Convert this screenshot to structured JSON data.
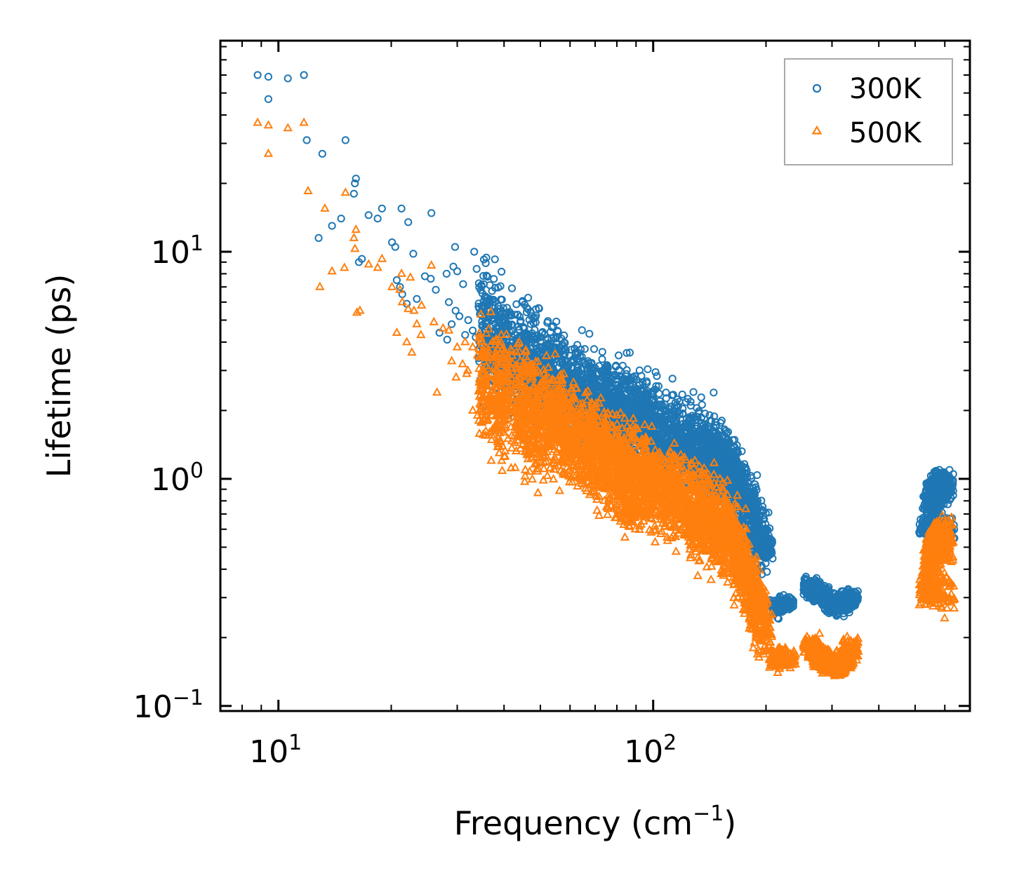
{
  "chart_data": {
    "type": "scatter",
    "xscale": "log",
    "yscale": "log",
    "xlim": [
      7,
      700
    ],
    "ylim": [
      0.095,
      85
    ],
    "xlabel": {
      "text": "Frequency (cm",
      "sup": "−1",
      "suffix": ")"
    },
    "ylabel": "Lifetime (ps)",
    "xticks": [
      {
        "value": 10,
        "base": "10",
        "exp": "1"
      },
      {
        "value": 100,
        "base": "10",
        "exp": "2"
      }
    ],
    "yticks": [
      {
        "value": 0.1,
        "base": "10",
        "exp": "−1"
      },
      {
        "value": 1,
        "base": "10",
        "exp": "0"
      },
      {
        "value": 10,
        "base": "10",
        "exp": "1"
      }
    ],
    "legend": {
      "placement": "top-right"
    },
    "series": [
      {
        "name": "300K",
        "marker": "circle",
        "color": "#1f77b4",
        "points": [
          [
            8.8,
            60
          ],
          [
            9.4,
            59
          ],
          [
            10.6,
            58
          ],
          [
            11.7,
            60
          ],
          [
            9.4,
            47
          ],
          [
            11.9,
            31
          ],
          [
            13.1,
            27
          ],
          [
            15.1,
            31
          ],
          [
            16.1,
            21
          ],
          [
            16.0,
            20
          ],
          [
            15.9,
            18
          ],
          [
            13.9,
            13
          ],
          [
            12.8,
            11.5
          ],
          [
            14.7,
            14
          ],
          [
            17.4,
            14.5
          ],
          [
            18.4,
            14
          ],
          [
            18.9,
            15.5
          ],
          [
            21.3,
            15.5
          ],
          [
            25.6,
            14.8
          ],
          [
            22.2,
            13.5
          ],
          [
            20.1,
            11
          ],
          [
            20.5,
            10.5
          ],
          [
            22.9,
            9.8
          ],
          [
            16.7,
            9.3
          ],
          [
            16.4,
            9
          ],
          [
            29.6,
            10.5
          ],
          [
            33.3,
            10
          ],
          [
            20.7,
            7.5
          ],
          [
            21.1,
            7
          ],
          [
            24.6,
            7.8
          ],
          [
            25.5,
            7.6
          ],
          [
            28.1,
            8
          ],
          [
            29.3,
            8.6
          ],
          [
            30.0,
            8.2
          ],
          [
            31.1,
            7.2
          ],
          [
            33.8,
            8.4
          ],
          [
            21.4,
            6.5
          ],
          [
            23.4,
            6.2
          ],
          [
            26.3,
            6.8
          ],
          [
            22.0,
            5.9
          ],
          [
            28.5,
            6
          ],
          [
            29.7,
            5.5
          ],
          [
            30.4,
            5.2
          ],
          [
            32.1,
            5
          ],
          [
            35.4,
            5.8
          ],
          [
            36.5,
            6
          ],
          [
            38.9,
            5.6
          ],
          [
            44.7,
            6
          ],
          [
            29.0,
            4.8
          ],
          [
            33.0,
            4.5
          ],
          [
            31.5,
            4.3
          ],
          [
            33.6,
            4.2
          ],
          [
            26.9,
            4.4
          ],
          [
            28.2,
            4.1
          ],
          [
            35.0,
            3.6
          ],
          [
            34.2,
            3.4
          ],
          [
            44.2,
            4.9
          ],
          [
            48.0,
            4.1
          ],
          [
            54.0,
            3.8
          ],
          [
            58.5,
            3.7
          ],
          [
            62.0,
            3.6
          ],
          [
            67.0,
            3.3
          ],
          [
            75.0,
            2.6
          ],
          [
            88.0,
            2.6
          ],
          [
            95.0,
            2.3
          ],
          [
            100.0,
            2.2
          ],
          [
            145.0,
            2.4
          ],
          [
            185.0,
            0.8
          ],
          [
            190.0,
            0.8
          ],
          [
            200.0,
            0.55
          ],
          [
            205.0,
            0.5
          ],
          [
            198.0,
            0.45
          ],
          [
            195.0,
            0.38
          ]
        ],
        "bands": [
          [
            36,
            4.4,
            0.45,
            140
          ],
          [
            40,
            3.8,
            0.4,
            170
          ],
          [
            45,
            3.3,
            0.38,
            180
          ],
          [
            50,
            2.95,
            0.36,
            180
          ],
          [
            55,
            2.7,
            0.34,
            180
          ],
          [
            60,
            2.5,
            0.33,
            180
          ],
          [
            66,
            2.3,
            0.32,
            180
          ],
          [
            72,
            2.15,
            0.3,
            180
          ],
          [
            78,
            2.05,
            0.3,
            180
          ],
          [
            85,
            1.95,
            0.3,
            180
          ],
          [
            92,
            1.85,
            0.3,
            180
          ],
          [
            100,
            1.7,
            0.28,
            180
          ],
          [
            110,
            1.55,
            0.28,
            180
          ],
          [
            120,
            1.45,
            0.27,
            180
          ],
          [
            130,
            1.35,
            0.27,
            180
          ],
          [
            140,
            1.3,
            0.25,
            170
          ],
          [
            150,
            1.2,
            0.25,
            160
          ],
          [
            160,
            1.1,
            0.22,
            150
          ],
          [
            170,
            0.95,
            0.22,
            140
          ],
          [
            180,
            0.75,
            0.2,
            130
          ],
          [
            190,
            0.6,
            0.18,
            110
          ],
          [
            198,
            0.5,
            0.16,
            90
          ],
          [
            215,
            0.27,
            0.06,
            60
          ],
          [
            225,
            0.285,
            0.05,
            60
          ],
          [
            265,
            0.33,
            0.07,
            110
          ],
          [
            280,
            0.31,
            0.07,
            110
          ],
          [
            295,
            0.29,
            0.06,
            110
          ],
          [
            310,
            0.275,
            0.06,
            110
          ],
          [
            325,
            0.28,
            0.05,
            100
          ],
          [
            335,
            0.3,
            0.06,
            90
          ],
          [
            540,
            0.6,
            0.08,
            60
          ],
          [
            550,
            0.75,
            0.1,
            80
          ],
          [
            560,
            0.86,
            0.08,
            90
          ],
          [
            570,
            0.9,
            0.08,
            90
          ],
          [
            580,
            0.92,
            0.09,
            90
          ],
          [
            590,
            0.95,
            0.1,
            90
          ],
          [
            600,
            0.9,
            0.1,
            90
          ],
          [
            605,
            0.6,
            0.12,
            60
          ]
        ]
      },
      {
        "name": "500K",
        "marker": "triangle",
        "color": "#ff7f0e",
        "points": [
          [
            8.8,
            37
          ],
          [
            9.4,
            36
          ],
          [
            10.6,
            35
          ],
          [
            11.7,
            37
          ],
          [
            9.4,
            27
          ],
          [
            12.0,
            18.5
          ],
          [
            13.3,
            15.5
          ],
          [
            15.1,
            18.2
          ],
          [
            16.1,
            12.5
          ],
          [
            15.9,
            11.5
          ],
          [
            16.0,
            10.3
          ],
          [
            15.0,
            8.5
          ],
          [
            13.9,
            8.2
          ],
          [
            12.9,
            7
          ],
          [
            17.4,
            8.8
          ],
          [
            18.4,
            8.5
          ],
          [
            18.9,
            9.3
          ],
          [
            21.3,
            8
          ],
          [
            22.5,
            7.7
          ],
          [
            25.6,
            8.7
          ],
          [
            20.1,
            7
          ],
          [
            21.1,
            6.8
          ],
          [
            21.4,
            6
          ],
          [
            22.2,
            5.6
          ],
          [
            16.2,
            5.4
          ],
          [
            16.5,
            5.5
          ],
          [
            23.0,
            5.5
          ],
          [
            24.1,
            5.8
          ],
          [
            26.0,
            4.9
          ],
          [
            20.7,
            4.4
          ],
          [
            23.4,
            4.8
          ],
          [
            24.0,
            4.3
          ],
          [
            27.5,
            4.6
          ],
          [
            22.0,
            4.0
          ],
          [
            22.7,
            3.6
          ],
          [
            28.5,
            4.5
          ],
          [
            30.0,
            3.8
          ],
          [
            31.5,
            4.0
          ],
          [
            33.0,
            3.8
          ],
          [
            35.0,
            3.6
          ],
          [
            29.0,
            3.3
          ],
          [
            31.0,
            3.2
          ],
          [
            32.0,
            3.0
          ],
          [
            34.0,
            3.5
          ],
          [
            36.0,
            3.4
          ],
          [
            29.8,
            2.8
          ],
          [
            31.8,
            2.9
          ],
          [
            26.5,
            2.4
          ],
          [
            34.5,
            2.5
          ],
          [
            35.5,
            2.2
          ],
          [
            37.0,
            2.0
          ],
          [
            34.0,
            1.9
          ],
          [
            33.0,
            2.0
          ],
          [
            36.0,
            1.8
          ],
          [
            38.0,
            1.7
          ],
          [
            40.0,
            1.6
          ],
          [
            41.0,
            1.5
          ],
          [
            88.0,
            1.5
          ],
          [
            96.0,
            1.5
          ],
          [
            120.0,
            0.9
          ],
          [
            150.0,
            0.5
          ],
          [
            155.0,
            0.42
          ],
          [
            158.0,
            0.35
          ],
          [
            185.0,
            0.18
          ],
          [
            208.0,
            0.15
          ],
          [
            215.0,
            0.14
          ]
        ],
        "bands": [
          [
            36,
            2.55,
            0.45,
            130
          ],
          [
            40,
            2.3,
            0.42,
            170
          ],
          [
            45,
            2.05,
            0.4,
            180
          ],
          [
            50,
            1.9,
            0.38,
            180
          ],
          [
            55,
            1.75,
            0.36,
            180
          ],
          [
            60,
            1.6,
            0.35,
            180
          ],
          [
            66,
            1.45,
            0.34,
            180
          ],
          [
            72,
            1.3,
            0.33,
            180
          ],
          [
            78,
            1.15,
            0.33,
            180
          ],
          [
            84,
            1.05,
            0.34,
            180
          ],
          [
            88,
            0.75,
            0.12,
            70
          ],
          [
            92,
            1.0,
            0.32,
            180
          ],
          [
            100,
            0.95,
            0.3,
            180
          ],
          [
            110,
            0.88,
            0.3,
            180
          ],
          [
            120,
            0.8,
            0.3,
            180
          ],
          [
            130,
            0.72,
            0.3,
            170
          ],
          [
            140,
            0.68,
            0.3,
            170
          ],
          [
            150,
            0.62,
            0.28,
            160
          ],
          [
            160,
            0.55,
            0.27,
            150
          ],
          [
            170,
            0.45,
            0.25,
            140
          ],
          [
            180,
            0.35,
            0.22,
            140
          ],
          [
            190,
            0.28,
            0.22,
            120
          ],
          [
            197,
            0.22,
            0.2,
            90
          ],
          [
            215,
            0.163,
            0.06,
            70
          ],
          [
            228,
            0.16,
            0.06,
            70
          ],
          [
            265,
            0.18,
            0.07,
            110
          ],
          [
            280,
            0.165,
            0.07,
            120
          ],
          [
            295,
            0.152,
            0.07,
            120
          ],
          [
            310,
            0.15,
            0.07,
            110
          ],
          [
            325,
            0.16,
            0.06,
            90
          ],
          [
            335,
            0.18,
            0.07,
            80
          ],
          [
            540,
            0.32,
            0.12,
            70
          ],
          [
            550,
            0.4,
            0.12,
            80
          ],
          [
            560,
            0.48,
            0.1,
            90
          ],
          [
            570,
            0.52,
            0.1,
            90
          ],
          [
            580,
            0.55,
            0.1,
            90
          ],
          [
            590,
            0.57,
            0.1,
            90
          ],
          [
            600,
            0.5,
            0.14,
            80
          ],
          [
            605,
            0.32,
            0.12,
            60
          ]
        ]
      }
    ]
  }
}
